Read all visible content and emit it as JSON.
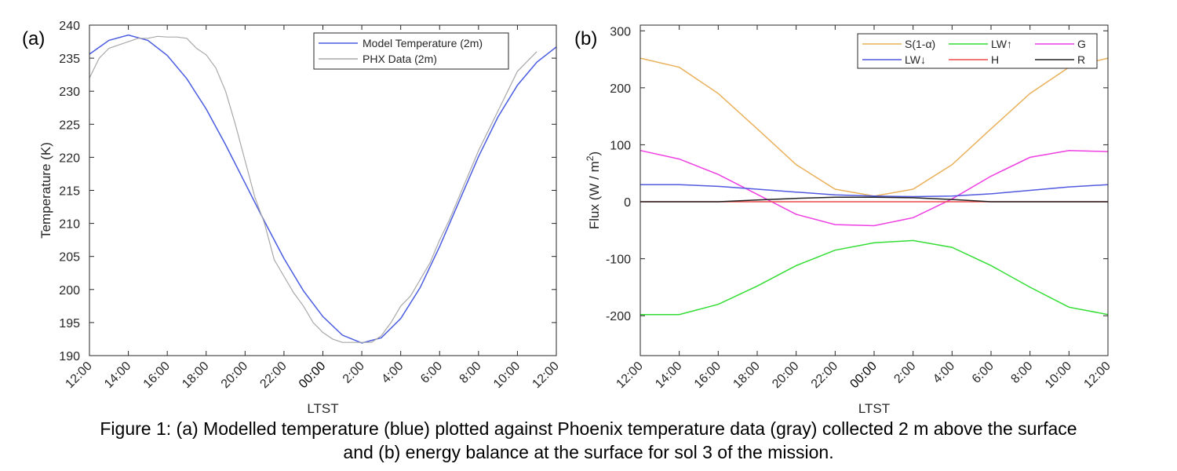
{
  "caption": {
    "line1": "Figure 1: (a) Modelled temperature (blue) plotted against Phoenix temperature data (gray) collected 2 m above the surface",
    "line2": "and (b) energy balance at the surface for sol 3 of the mission."
  },
  "colors": {
    "model": "#4a5ce0",
    "phx": "#a8a8a8",
    "s": "#eab15c",
    "lwup": "#33dd33",
    "g": "#ee3fe2",
    "lwdown": "#5059e0",
    "h": "#ee4a4a",
    "r": "#222222"
  },
  "chart_data": [
    {
      "type": "line",
      "panel_label": "(a)",
      "xlabel": "LTST",
      "ylabel": "Temperature (K)",
      "x_ticks": [
        "12:00",
        "14:00",
        "16:00",
        "18:00",
        "20:00",
        "22:00",
        "00:00",
        "2:00",
        "4:00",
        "6:00",
        "8:00",
        "10:00",
        "12:00"
      ],
      "x_tick_hours": [
        0,
        2,
        4,
        6,
        8,
        10,
        12,
        14,
        16,
        18,
        20,
        22,
        24
      ],
      "xlim": [
        0,
        24
      ],
      "ylim": [
        190,
        240
      ],
      "y_ticks": [
        190,
        195,
        200,
        205,
        210,
        215,
        220,
        225,
        230,
        235,
        240
      ],
      "grid": false,
      "legend_position": "top-right",
      "series": [
        {
          "name": "Model Temperature (2m)",
          "x": [
            0,
            1,
            2,
            3,
            4,
            5,
            6,
            7,
            8,
            9,
            10,
            11,
            12,
            13,
            14,
            15,
            16,
            17,
            18,
            19,
            20,
            21,
            22,
            23,
            24
          ],
          "y": [
            235.6,
            237.7,
            238.5,
            237.7,
            235.4,
            231.9,
            227.3,
            221.9,
            216.1,
            210.3,
            204.7,
            199.8,
            195.9,
            193.1,
            191.9,
            192.7,
            195.6,
            200.3,
            206.5,
            213.3,
            220.1,
            226.1,
            230.9,
            234.4,
            236.7
          ]
        },
        {
          "name": "PHX Data (2m)",
          "x": [
            0,
            0.5,
            1,
            1.5,
            2,
            2.5,
            3,
            3.5,
            4,
            4.5,
            5,
            5.5,
            6,
            6.5,
            7,
            7.5,
            8,
            8.5,
            9,
            9.5,
            10,
            10.5,
            11,
            11.5,
            12,
            12.5,
            13,
            13.5,
            14,
            14.5,
            15,
            15.5,
            16,
            16.5,
            17,
            17.5,
            18,
            18.5,
            19,
            19.5,
            20,
            20.5,
            21,
            21.5,
            22,
            22.5,
            23
          ],
          "y": [
            232,
            235,
            236.5,
            237,
            237.5,
            238,
            238,
            238.3,
            238.2,
            238.2,
            238,
            236.5,
            235.5,
            233.5,
            230,
            225,
            219.5,
            214,
            210,
            204.5,
            202,
            199.5,
            197.5,
            195,
            193.5,
            192.5,
            192,
            192,
            192,
            192,
            193,
            195,
            197.5,
            199,
            201.5,
            204,
            207.5,
            210.5,
            214,
            217.5,
            221,
            224,
            227,
            230,
            233,
            234.5,
            236
          ]
        }
      ]
    },
    {
      "type": "line",
      "panel_label": "(b)",
      "xlabel": "LTST",
      "ylabel": "Flux (W / m",
      "ylabel_sup": "2",
      "ylabel_close": ")",
      "x_ticks": [
        "12:00",
        "14:00",
        "16:00",
        "18:00",
        "20:00",
        "22:00",
        "00:00",
        "2:00",
        "4:00",
        "6:00",
        "8:00",
        "10:00",
        "12:00"
      ],
      "x_tick_hours": [
        0,
        2,
        4,
        6,
        8,
        10,
        12,
        14,
        16,
        18,
        20,
        22,
        24
      ],
      "xlim": [
        0,
        24
      ],
      "ylim": [
        -270,
        310
      ],
      "y_ticks": [
        -200,
        -100,
        0,
        100,
        200,
        300
      ],
      "grid": false,
      "legend_position": "top-right",
      "series": [
        {
          "name": "S(1-α)",
          "x": [
            0,
            2,
            4,
            6,
            8,
            10,
            12,
            14,
            16,
            18,
            20,
            22,
            24
          ],
          "y": [
            252,
            236,
            190,
            128,
            65,
            22,
            10,
            22,
            65,
            128,
            190,
            236,
            252
          ]
        },
        {
          "name": "LW↑",
          "x": [
            0,
            2,
            4,
            6,
            8,
            10,
            12,
            14,
            16,
            18,
            20,
            22,
            24
          ],
          "y": [
            -198,
            -198,
            -180,
            -148,
            -112,
            -85,
            -72,
            -68,
            -80,
            -112,
            -150,
            -185,
            -198
          ]
        },
        {
          "name": "G",
          "x": [
            0,
            2,
            4,
            6,
            8,
            10,
            12,
            14,
            16,
            18,
            20,
            22,
            24
          ],
          "y": [
            90,
            75,
            48,
            13,
            -22,
            -40,
            -42,
            -28,
            5,
            45,
            78,
            90,
            88
          ]
        },
        {
          "name": "LW↓",
          "x": [
            0,
            2,
            4,
            6,
            8,
            10,
            12,
            14,
            16,
            18,
            20,
            22,
            24
          ],
          "y": [
            30,
            30,
            27,
            22,
            17,
            12,
            10,
            9,
            10,
            14,
            20,
            26,
            30
          ]
        },
        {
          "name": "H",
          "x": [
            0,
            2,
            4,
            6,
            8,
            10,
            12,
            14,
            16,
            18,
            20,
            22,
            24
          ],
          "y": [
            0,
            0,
            0,
            0,
            0,
            0,
            0,
            0,
            0,
            0,
            0,
            0,
            0
          ]
        },
        {
          "name": "R",
          "x": [
            0,
            2,
            4,
            6,
            8,
            10,
            12,
            14,
            16,
            18,
            20,
            22,
            24
          ],
          "y": [
            0,
            0,
            0,
            3,
            6,
            8,
            8,
            7,
            4,
            0,
            0,
            0,
            0
          ]
        }
      ]
    }
  ]
}
